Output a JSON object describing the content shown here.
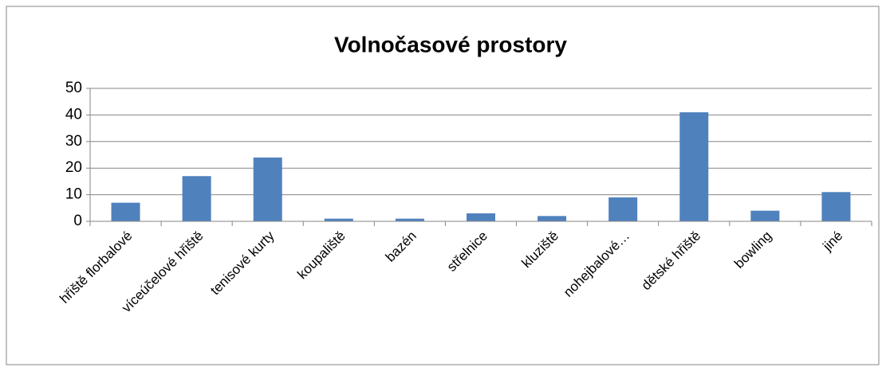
{
  "chart_data": {
    "type": "bar",
    "title": "Volnočasové prostory",
    "categories": [
      "hřiště florbalové",
      "víceúčelové hřiště",
      "tenisové kurty",
      "koupaliště",
      "bazén",
      "střelnice",
      "kluziště",
      "nohejbalové…",
      "dětské hřiště",
      "bowling",
      "jiné"
    ],
    "values": [
      7,
      17,
      24,
      1,
      1,
      3,
      2,
      9,
      41,
      4,
      11
    ],
    "color": "#4f81bd",
    "ylim": [
      0,
      50
    ],
    "yticks": [
      0,
      10,
      20,
      30,
      40,
      50
    ],
    "grid": true
  }
}
